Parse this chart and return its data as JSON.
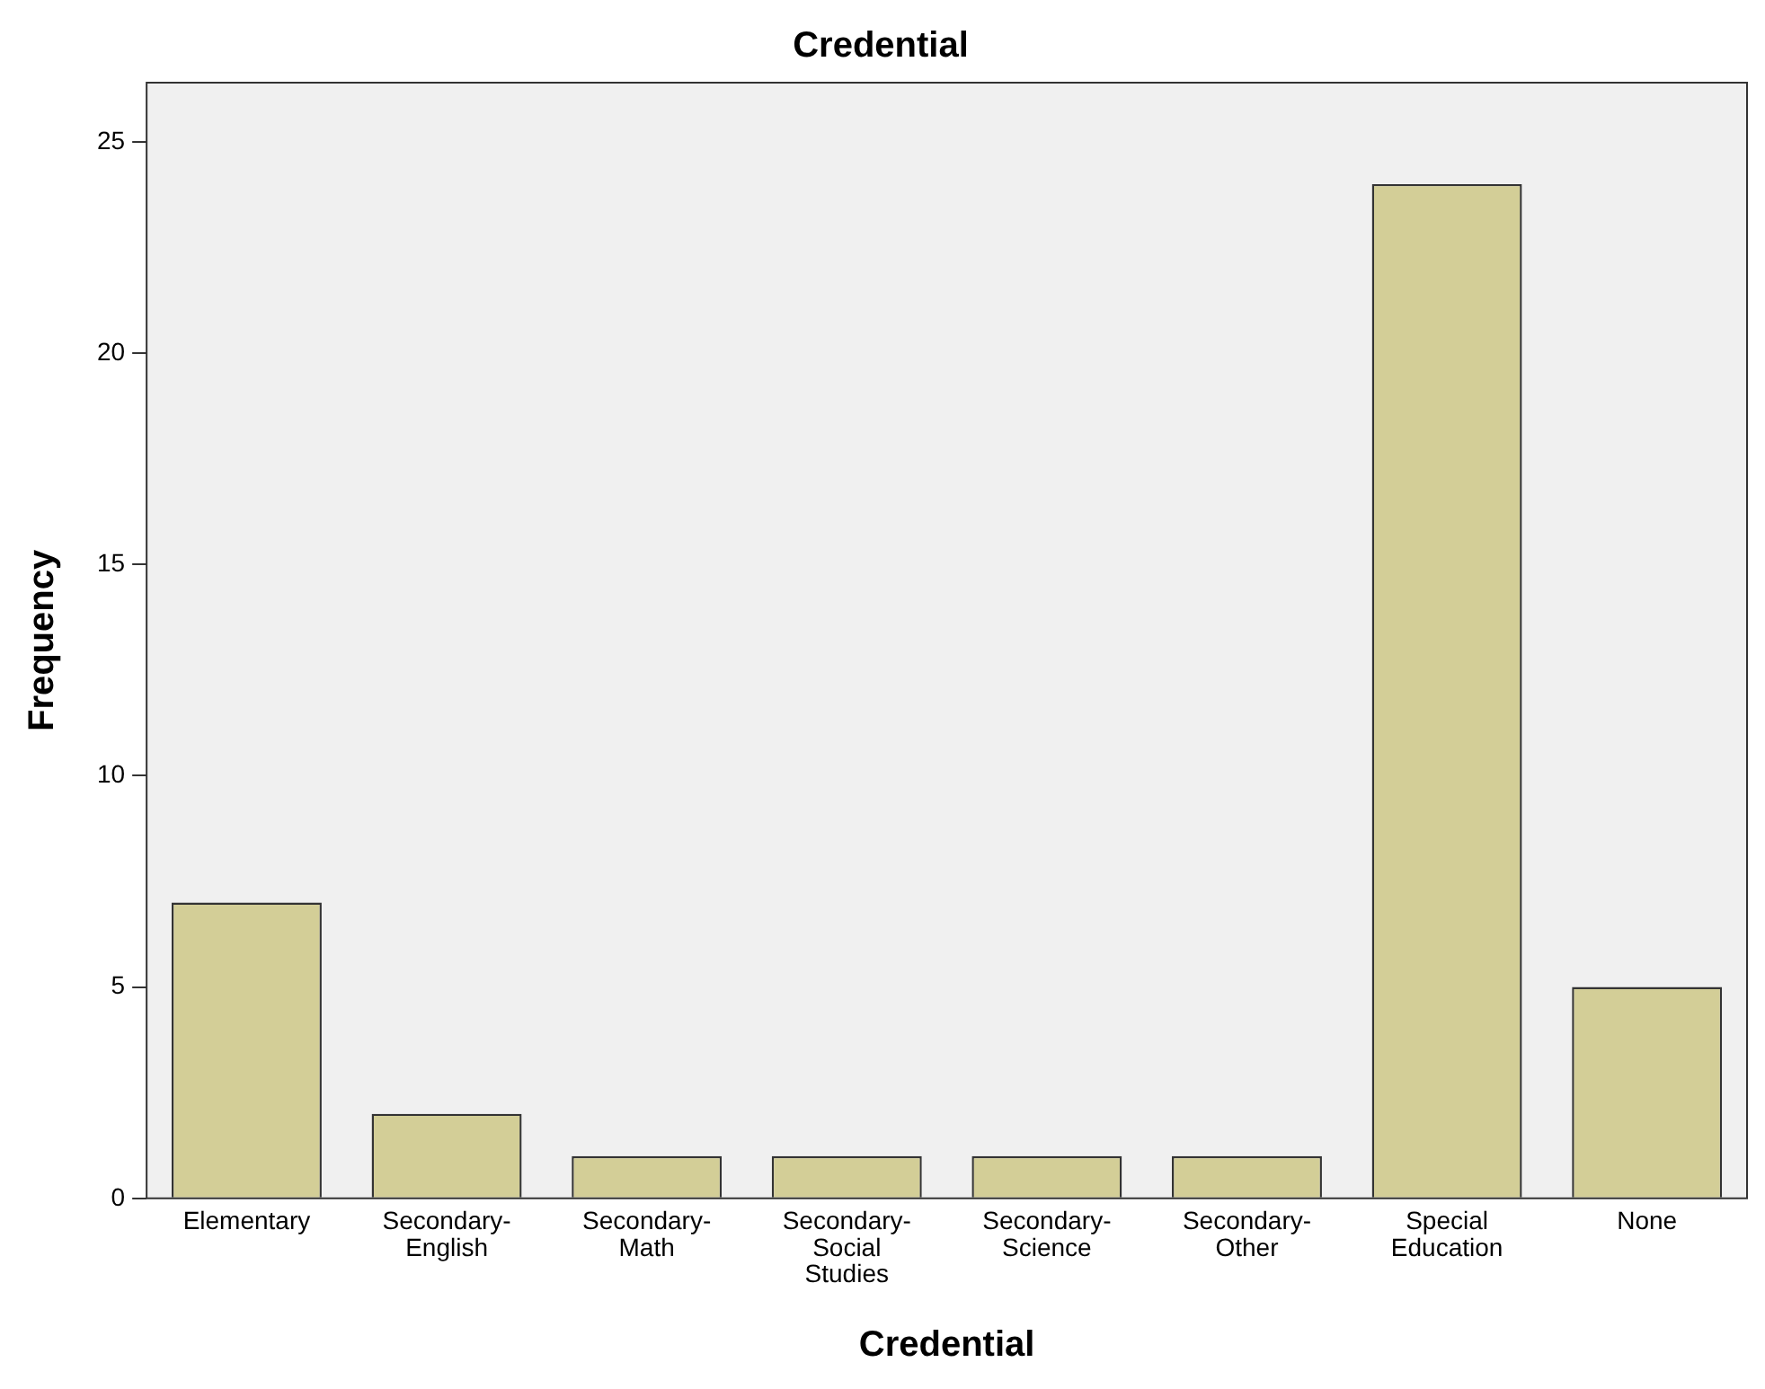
{
  "chart_data": {
    "type": "bar",
    "title": "Credential",
    "xlabel": "Credential",
    "ylabel": "Frequency",
    "categories": [
      "Elementary",
      "Secondary-\nEnglish",
      "Secondary-\nMath",
      "Secondary-\nSocial\nStudies",
      "Secondary-\nScience",
      "Secondary-\nOther",
      "Special\nEducation",
      "None"
    ],
    "values": [
      7,
      2,
      1,
      1,
      1,
      1,
      24,
      5
    ],
    "color": "#d3ce97",
    "ylim": [
      0,
      26.4
    ],
    "yticks": [
      0,
      5,
      10,
      15,
      20,
      25
    ],
    "grid": false,
    "legend": false
  }
}
